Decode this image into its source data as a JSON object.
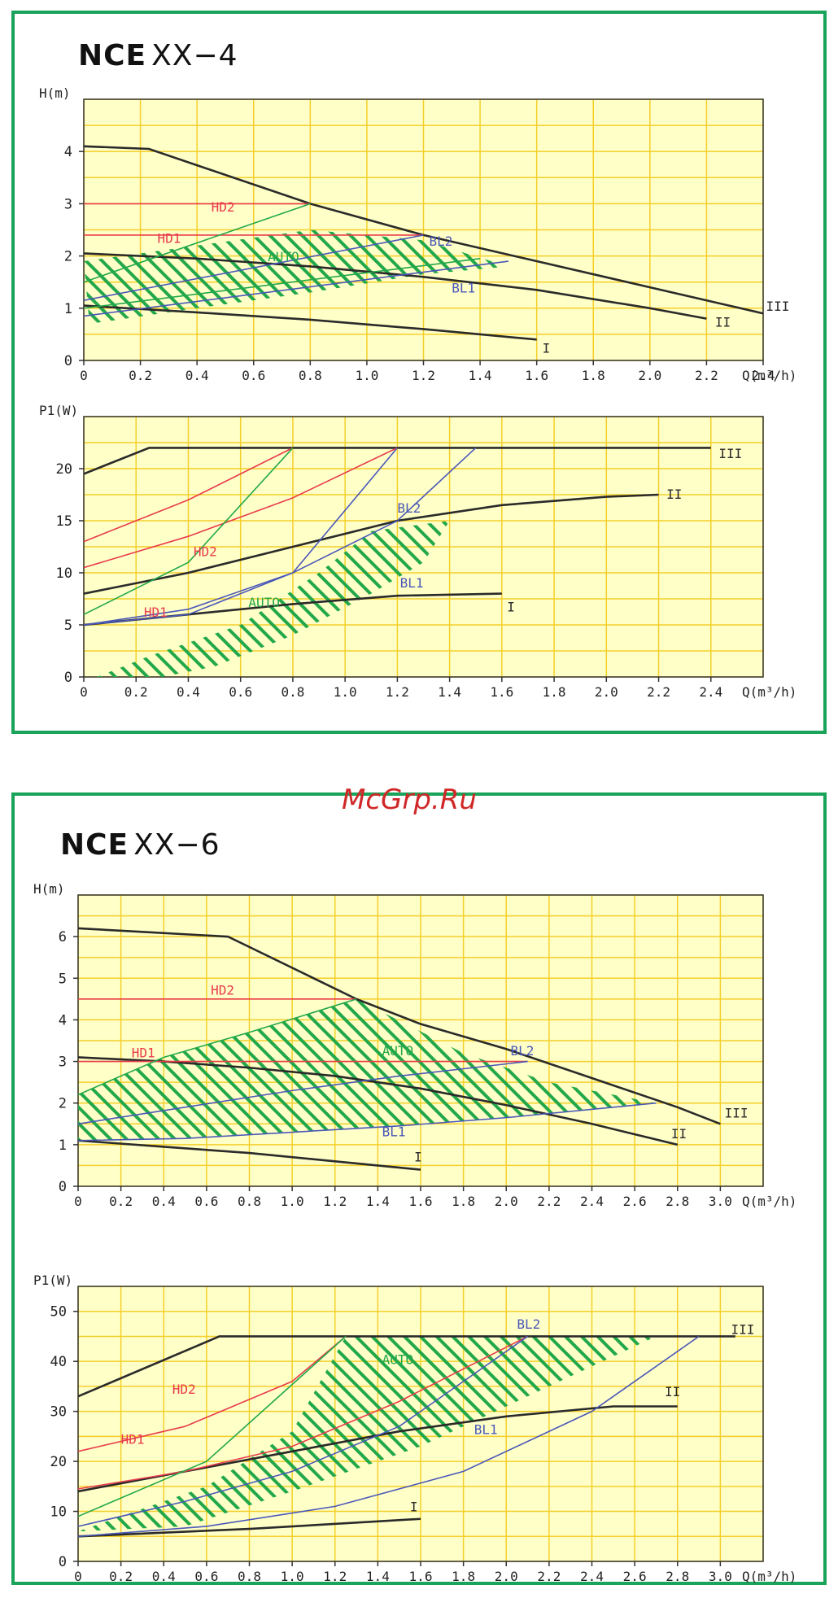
{
  "watermark": "McGrp.Ru",
  "panels": [
    {
      "model": "NCE",
      "variant": "XX−4"
    },
    {
      "model": "NCE",
      "variant": "XX−6"
    }
  ],
  "colors": {
    "border": "#1aa35a",
    "plot_bg": "#ffffc8",
    "grid": "#f4cf2a",
    "axis": "#333333",
    "speed_curve": "#2a2a2a",
    "hd": "#e83c4c",
    "bl": "#4a58b8",
    "auto": "#22a84a"
  },
  "chart_data": [
    {
      "id": "c1",
      "type": "line",
      "ylabel": "H(m)",
      "xlabel": "Q(m³/h)",
      "xlim": [
        0,
        2.4
      ],
      "ylim": [
        0,
        5
      ],
      "xticks": [
        0,
        0.2,
        0.4,
        0.6,
        0.8,
        1.0,
        1.2,
        1.4,
        1.6,
        1.8,
        2.0,
        2.2,
        2.4
      ],
      "yticks": [
        0,
        1,
        2,
        3,
        4
      ],
      "auto_region": [
        [
          0.02,
          0.7
        ],
        [
          0.4,
          1.0
        ],
        [
          0.8,
          1.3
        ],
        [
          1.2,
          1.65
        ],
        [
          1.5,
          1.8
        ],
        [
          1.2,
          2.3
        ],
        [
          0.8,
          2.5
        ],
        [
          0.4,
          2.2
        ],
        [
          0,
          1.9
        ]
      ],
      "series": [
        {
          "name": "III",
          "style": "speed",
          "x": [
            0,
            0.23,
            0.8,
            1.2,
            1.6,
            2.0,
            2.4
          ],
          "y": [
            4.1,
            4.05,
            3.0,
            2.4,
            1.9,
            1.4,
            0.9
          ]
        },
        {
          "name": "II",
          "style": "speed",
          "x": [
            0,
            0.4,
            0.8,
            1.2,
            1.6,
            2.0,
            2.2
          ],
          "y": [
            2.05,
            1.95,
            1.8,
            1.6,
            1.35,
            1.0,
            0.8
          ]
        },
        {
          "name": "I",
          "style": "speed",
          "x": [
            0,
            0.4,
            0.8,
            1.2,
            1.6
          ],
          "y": [
            1.05,
            0.92,
            0.78,
            0.6,
            0.4
          ]
        },
        {
          "name": "HD2",
          "style": "hd",
          "x": [
            0,
            0.8
          ],
          "y": [
            3.0,
            3.0
          ]
        },
        {
          "name": "HD1",
          "style": "hd",
          "x": [
            0,
            1.2
          ],
          "y": [
            2.4,
            2.4
          ]
        },
        {
          "name": "BL2",
          "style": "bl",
          "x": [
            0,
            1.2
          ],
          "y": [
            1.15,
            2.4
          ]
        },
        {
          "name": "BL1",
          "style": "bl",
          "x": [
            0,
            1.5
          ],
          "y": [
            0.85,
            1.9
          ]
        },
        {
          "name": "AUTO",
          "style": "auto",
          "x": [
            0,
            0.8
          ],
          "y": [
            1.5,
            3.0
          ]
        },
        {
          "name": "",
          "style": "auto",
          "x": [
            0,
            1.4
          ],
          "y": [
            1.0,
            1.95
          ]
        }
      ],
      "labels": [
        {
          "text": "HD2",
          "x": 0.45,
          "y": 2.85,
          "style": "hd"
        },
        {
          "text": "HD1",
          "x": 0.26,
          "y": 2.25,
          "style": "hd"
        },
        {
          "text": "AUTO",
          "x": 0.65,
          "y": 1.9,
          "style": "auto"
        },
        {
          "text": "BL2",
          "x": 1.22,
          "y": 2.2,
          "style": "bl"
        },
        {
          "text": "BL1",
          "x": 1.3,
          "y": 1.3,
          "style": "bl"
        },
        {
          "text": "III",
          "x": 2.41,
          "y": 0.95,
          "style": "speed"
        },
        {
          "text": "II",
          "x": 2.23,
          "y": 0.65,
          "style": "speed"
        },
        {
          "text": "I",
          "x": 1.62,
          "y": 0.15,
          "style": "speed"
        }
      ]
    },
    {
      "id": "c2",
      "type": "line",
      "ylabel": "P1(W)",
      "xlabel": "Q(m³/h)",
      "xlim": [
        0,
        2.6
      ],
      "ylim": [
        0,
        25
      ],
      "xticks": [
        0,
        0.2,
        0.4,
        0.6,
        0.8,
        1.0,
        1.2,
        1.4,
        1.6,
        1.8,
        2.0,
        2.2,
        2.4
      ],
      "yticks": [
        0,
        5,
        10,
        15,
        20
      ],
      "auto_region": [
        [
          0.05,
          0
        ],
        [
          0.25,
          2
        ],
        [
          0.6,
          5
        ],
        [
          0.9,
          10
        ],
        [
          1.1,
          14
        ],
        [
          1.4,
          15
        ],
        [
          1.3,
          11
        ],
        [
          1.1,
          8
        ],
        [
          0.8,
          4
        ],
        [
          0.5,
          1
        ],
        [
          0.3,
          0
        ]
      ],
      "series": [
        {
          "name": "III",
          "style": "speed",
          "x": [
            0,
            0.25,
            0.8,
            1.6,
            2.4
          ],
          "y": [
            19.5,
            22,
            22,
            22,
            22
          ]
        },
        {
          "name": "II",
          "style": "speed",
          "x": [
            0,
            0.4,
            0.8,
            1.2,
            1.6,
            2.0,
            2.2
          ],
          "y": [
            8,
            10,
            12.5,
            15,
            16.5,
            17.3,
            17.5
          ]
        },
        {
          "name": "I",
          "style": "speed",
          "x": [
            0,
            0.4,
            0.8,
            1.2,
            1.6
          ],
          "y": [
            5,
            6,
            7,
            7.8,
            8
          ]
        },
        {
          "name": "HD2",
          "style": "hd",
          "x": [
            0,
            0.4,
            0.8
          ],
          "y": [
            13,
            17,
            22
          ]
        },
        {
          "name": "HD1",
          "style": "hd",
          "x": [
            0,
            0.4,
            0.8,
            1.2
          ],
          "y": [
            10.5,
            13.5,
            17.2,
            22
          ]
        },
        {
          "name": "BL2",
          "style": "bl",
          "x": [
            0,
            0.4,
            0.8,
            1.2,
            1.5
          ],
          "y": [
            5,
            6.5,
            10,
            15,
            22
          ]
        },
        {
          "name": "BL1",
          "style": "bl",
          "x": [
            0,
            0.4,
            0.8,
            1.2
          ],
          "y": [
            5,
            6,
            10,
            22
          ]
        },
        {
          "name": "AUTO",
          "style": "auto",
          "x": [
            0,
            0.4,
            0.8
          ],
          "y": [
            6,
            11,
            22
          ]
        }
      ],
      "labels": [
        {
          "text": "BL2",
          "x": 1.2,
          "y": 15.8,
          "style": "bl"
        },
        {
          "text": "HD2",
          "x": 0.42,
          "y": 11.6,
          "style": "hd"
        },
        {
          "text": "BL1",
          "x": 1.21,
          "y": 8.6,
          "style": "bl"
        },
        {
          "text": "AUTO",
          "x": 0.63,
          "y": 6.7,
          "style": "auto"
        },
        {
          "text": "HD1",
          "x": 0.23,
          "y": 5.8,
          "style": "hd"
        },
        {
          "text": "III",
          "x": 2.43,
          "y": 21.0,
          "style": "speed"
        },
        {
          "text": "II",
          "x": 2.23,
          "y": 17.1,
          "style": "speed"
        },
        {
          "text": "I",
          "x": 1.62,
          "y": 6.3,
          "style": "speed"
        }
      ]
    },
    {
      "id": "c3",
      "type": "line",
      "ylabel": "H(m)",
      "xlabel": "Q(m³/h)",
      "xlim": [
        0,
        3.2
      ],
      "ylim": [
        0,
        7
      ],
      "xticks": [
        0,
        0.2,
        0.4,
        0.6,
        0.8,
        1.0,
        1.2,
        1.4,
        1.6,
        1.8,
        2.0,
        2.2,
        2.4,
        2.6,
        2.8,
        3.0
      ],
      "yticks": [
        0,
        1,
        2,
        3,
        4,
        5,
        6
      ],
      "auto_region": [
        [
          0,
          1.1
        ],
        [
          0.5,
          1.15
        ],
        [
          1.0,
          1.3
        ],
        [
          1.5,
          1.45
        ],
        [
          2.0,
          1.65
        ],
        [
          2.7,
          2.0
        ],
        [
          2.2,
          2.5
        ],
        [
          1.8,
          3.2
        ],
        [
          1.3,
          4.5
        ],
        [
          0.8,
          3.7
        ],
        [
          0.4,
          3.1
        ],
        [
          0,
          2.2
        ]
      ],
      "series": [
        {
          "name": "III",
          "style": "speed",
          "x": [
            0,
            0.7,
            1.3,
            1.6,
            2.0,
            2.4,
            2.8,
            3.0
          ],
          "y": [
            6.2,
            6.0,
            4.5,
            3.9,
            3.3,
            2.6,
            1.9,
            1.5
          ]
        },
        {
          "name": "II",
          "style": "speed",
          "x": [
            0,
            0.4,
            0.8,
            1.2,
            1.6,
            2.0,
            2.4,
            2.8
          ],
          "y": [
            3.1,
            3.0,
            2.85,
            2.65,
            2.35,
            1.95,
            1.5,
            1.0
          ]
        },
        {
          "name": "I",
          "style": "speed",
          "x": [
            0,
            0.4,
            0.8,
            1.2,
            1.6
          ],
          "y": [
            1.1,
            0.95,
            0.8,
            0.6,
            0.4
          ]
        },
        {
          "name": "HD2",
          "style": "hd",
          "x": [
            0,
            1.3
          ],
          "y": [
            4.5,
            4.5
          ]
        },
        {
          "name": "HD1",
          "style": "hd",
          "x": [
            0,
            2.1
          ],
          "y": [
            3.0,
            3.0
          ]
        },
        {
          "name": "BL2",
          "style": "bl",
          "x": [
            0,
            0.5,
            1.0,
            1.5,
            2.1
          ],
          "y": [
            1.5,
            1.9,
            2.3,
            2.65,
            3.0
          ]
        },
        {
          "name": "BL1",
          "style": "bl",
          "x": [
            0,
            0.5,
            1.0,
            1.5,
            2.0,
            2.7
          ],
          "y": [
            1.1,
            1.15,
            1.3,
            1.45,
            1.65,
            2.0
          ]
        },
        {
          "name": "AUTO",
          "style": "auto",
          "x": [
            0,
            0.4,
            0.8,
            1.3
          ],
          "y": [
            2.2,
            3.1,
            3.7,
            4.5
          ]
        }
      ],
      "labels": [
        {
          "text": "HD2",
          "x": 0.62,
          "y": 4.6,
          "style": "hd"
        },
        {
          "text": "HD1",
          "x": 0.25,
          "y": 3.1,
          "style": "hd"
        },
        {
          "text": "AUTO",
          "x": 1.42,
          "y": 3.15,
          "style": "auto"
        },
        {
          "text": "BL2",
          "x": 2.02,
          "y": 3.15,
          "style": "bl"
        },
        {
          "text": "BL1",
          "x": 1.42,
          "y": 1.2,
          "style": "bl"
        },
        {
          "text": "III",
          "x": 3.02,
          "y": 1.65,
          "style": "speed"
        },
        {
          "text": "II",
          "x": 2.77,
          "y": 1.15,
          "style": "speed"
        },
        {
          "text": "I",
          "x": 1.57,
          "y": 0.6,
          "style": "speed"
        }
      ]
    },
    {
      "id": "c4",
      "type": "line",
      "ylabel": "P1(W)",
      "xlabel": "Q(m³/h)",
      "xlim": [
        0,
        3.2
      ],
      "ylim": [
        0,
        55
      ],
      "xticks": [
        0,
        0.2,
        0.4,
        0.6,
        0.8,
        1.0,
        1.2,
        1.4,
        1.6,
        1.8,
        2.0,
        2.2,
        2.4,
        2.6,
        2.8,
        3.0
      ],
      "yticks": [
        0,
        10,
        20,
        30,
        40,
        50
      ],
      "auto_region": [
        [
          0,
          6
        ],
        [
          0.6,
          15
        ],
        [
          1.0,
          26
        ],
        [
          1.25,
          45
        ],
        [
          2.7,
          45
        ],
        [
          2.2,
          35
        ],
        [
          1.6,
          23
        ],
        [
          1.0,
          14
        ],
        [
          0.5,
          7
        ]
      ],
      "series": [
        {
          "name": "III",
          "style": "speed",
          "x": [
            0,
            0.66,
            1.5,
            2.5,
            3.07
          ],
          "y": [
            33,
            45,
            45,
            45,
            45
          ]
        },
        {
          "name": "II",
          "style": "speed",
          "x": [
            0,
            0.5,
            1.0,
            1.5,
            2.0,
            2.5,
            2.8
          ],
          "y": [
            14,
            18,
            22,
            26,
            29,
            31,
            31
          ]
        },
        {
          "name": "I",
          "style": "speed",
          "x": [
            0,
            0.8,
            1.6
          ],
          "y": [
            5,
            6.5,
            8.5
          ]
        },
        {
          "name": "HD2",
          "style": "hd",
          "x": [
            0,
            0.5,
            1.0,
            1.25
          ],
          "y": [
            22,
            27,
            36,
            45
          ]
        },
        {
          "name": "HD1",
          "style": "hd",
          "x": [
            0,
            0.5,
            1.0,
            1.5,
            2.1
          ],
          "y": [
            14.5,
            18,
            23,
            32,
            45
          ]
        },
        {
          "name": "BL2",
          "style": "bl",
          "x": [
            0,
            0.5,
            1.0,
            1.5,
            2.1
          ],
          "y": [
            7,
            12,
            18,
            27,
            45
          ]
        },
        {
          "name": "BL1",
          "style": "bl",
          "x": [
            0,
            0.6,
            1.2,
            1.8,
            2.4,
            2.9
          ],
          "y": [
            5,
            7,
            11,
            18,
            30,
            45
          ]
        },
        {
          "name": "AUTO",
          "style": "auto",
          "x": [
            0,
            0.6,
            1.25
          ],
          "y": [
            9,
            20,
            45
          ]
        }
      ],
      "labels": [
        {
          "text": "BL2",
          "x": 2.05,
          "y": 46.5,
          "style": "bl"
        },
        {
          "text": "AUTO",
          "x": 1.42,
          "y": 39.5,
          "style": "auto"
        },
        {
          "text": "HD2",
          "x": 0.44,
          "y": 33.5,
          "style": "hd"
        },
        {
          "text": "HD1",
          "x": 0.2,
          "y": 23.5,
          "style": "hd"
        },
        {
          "text": "BL1",
          "x": 1.85,
          "y": 25.5,
          "style": "bl"
        },
        {
          "text": "III",
          "x": 3.05,
          "y": 45.5,
          "style": "speed"
        },
        {
          "text": "II",
          "x": 2.74,
          "y": 33,
          "style": "speed"
        },
        {
          "text": "I",
          "x": 1.55,
          "y": 10,
          "style": "speed"
        }
      ]
    }
  ]
}
